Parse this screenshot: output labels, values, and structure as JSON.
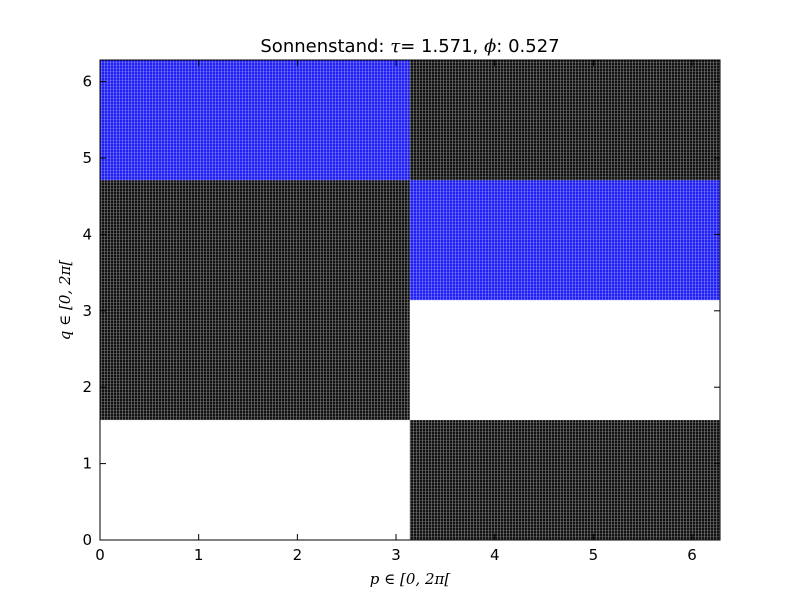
{
  "chart_data": {
    "type": "heatmap",
    "title": {
      "prefix": "Sonnenstand:",
      "tau_symbol": "τ",
      "tau_sep": "=",
      "tau_value": "1.571",
      "phi_symbol": "ϕ",
      "phi_sep": ":",
      "phi_value": "0.527"
    },
    "xlabel": {
      "var": "p",
      "rest": "∈ [0, 2π["
    },
    "ylabel": {
      "var": "q",
      "rest": "∈ [0, 2π["
    },
    "xlim": [
      0,
      6.283
    ],
    "ylim": [
      0,
      6.283
    ],
    "xticks": [
      0,
      1,
      2,
      3,
      4,
      5,
      6
    ],
    "yticks": [
      0,
      1,
      2,
      3,
      4,
      5,
      6
    ],
    "grid": false,
    "colors": {
      "black": "#111111",
      "blue": "#1f1ff5",
      "white": "#ffffff",
      "frame": "#000000"
    },
    "regions": [
      {
        "x": [
          0,
          3.14
        ],
        "y": [
          0,
          1.57
        ],
        "color": "white"
      },
      {
        "x": [
          0,
          3.14
        ],
        "y": [
          1.57,
          4.71
        ],
        "color": "black"
      },
      {
        "x": [
          0,
          3.14
        ],
        "y": [
          4.71,
          6.283
        ],
        "color": "blue"
      },
      {
        "x": [
          3.14,
          6.283
        ],
        "y": [
          0,
          1.57
        ],
        "color": "black"
      },
      {
        "x": [
          3.14,
          6.283
        ],
        "y": [
          1.57,
          3.14
        ],
        "color": "white"
      },
      {
        "x": [
          3.14,
          6.283
        ],
        "y": [
          3.14,
          4.71
        ],
        "color": "blue"
      },
      {
        "x": [
          3.14,
          6.283
        ],
        "y": [
          4.71,
          6.283
        ],
        "color": "black"
      }
    ]
  }
}
